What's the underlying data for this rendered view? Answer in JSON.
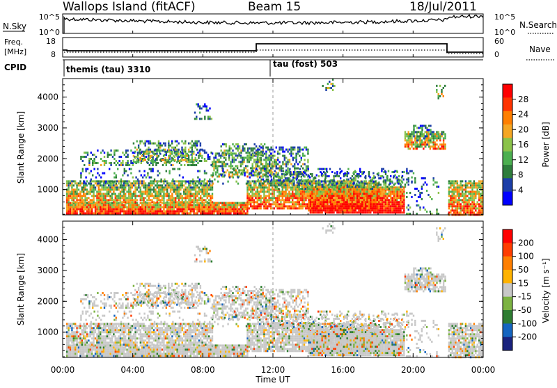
{
  "header": {
    "station": "Wallops Island (fitACF)",
    "beam": "Beam 15",
    "date": "18/Jul/2011"
  },
  "panels": {
    "nsky": {
      "label": "N.Sky",
      "left_ticks": [
        "10^5",
        "10^0"
      ],
      "right_ticks": [
        "10^5",
        "10^0"
      ],
      "right_label": "N.Search"
    },
    "freq": {
      "label_top": "Freq.",
      "label_bottom": "[MHz]",
      "left_ticks": [
        "18",
        "8"
      ],
      "right_ticks": [
        "60",
        "0"
      ],
      "right_label": "Nave"
    },
    "cpid": {
      "label": "CPID",
      "modes": [
        "themis (tau) 3310",
        "tau (fost) 503"
      ]
    }
  },
  "colors": {
    "power_scale": [
      "#0000ff",
      "#1c3ea8",
      "#2e7d3c",
      "#4caf50",
      "#8bc34a",
      "#f5a623",
      "#ff7f00",
      "#ff3300",
      "#ff0000"
    ],
    "velocity_scale": [
      "#1a237e",
      "#1565c0",
      "#2e7d32",
      "#7cb342",
      "#c8c8c8",
      "#ffb300",
      "#ff7f00",
      "#ff3d00",
      "#ff0000"
    ]
  },
  "chart_data": [
    {
      "type": "heatmap",
      "name": "power",
      "xlabel": "Time UT",
      "ylabel": "Slant Range [km]",
      "colorbar_label": "Power [dB]",
      "colorbar_ticks": [
        "28",
        "24",
        "20",
        "16",
        "12",
        "8",
        "4"
      ],
      "x_tick_labels": [
        "00:00",
        "04:00",
        "08:00",
        "12:00",
        "16:00",
        "20:00",
        "00:00"
      ],
      "y_tick_labels": [
        "1000",
        "2000",
        "3000",
        "4000"
      ],
      "xlim_hours": [
        0,
        24
      ],
      "ylim_km": [
        180,
        4600
      ]
    },
    {
      "type": "heatmap",
      "name": "velocity",
      "xlabel": "Time UT",
      "ylabel": "Slant Range [km]",
      "colorbar_label": "Velocity [m s⁻¹]",
      "colorbar_ticks": [
        "200",
        "100",
        "50",
        "15",
        "-15",
        "-50",
        "-100",
        "-200"
      ],
      "x_tick_labels": [
        "00:00",
        "04:00",
        "08:00",
        "12:00",
        "16:00",
        "20:00",
        "00:00"
      ],
      "y_tick_labels": [
        "1000",
        "2000",
        "3000",
        "4000"
      ],
      "xlim_hours": [
        0,
        24
      ],
      "ylim_km": [
        180,
        4600
      ]
    }
  ]
}
